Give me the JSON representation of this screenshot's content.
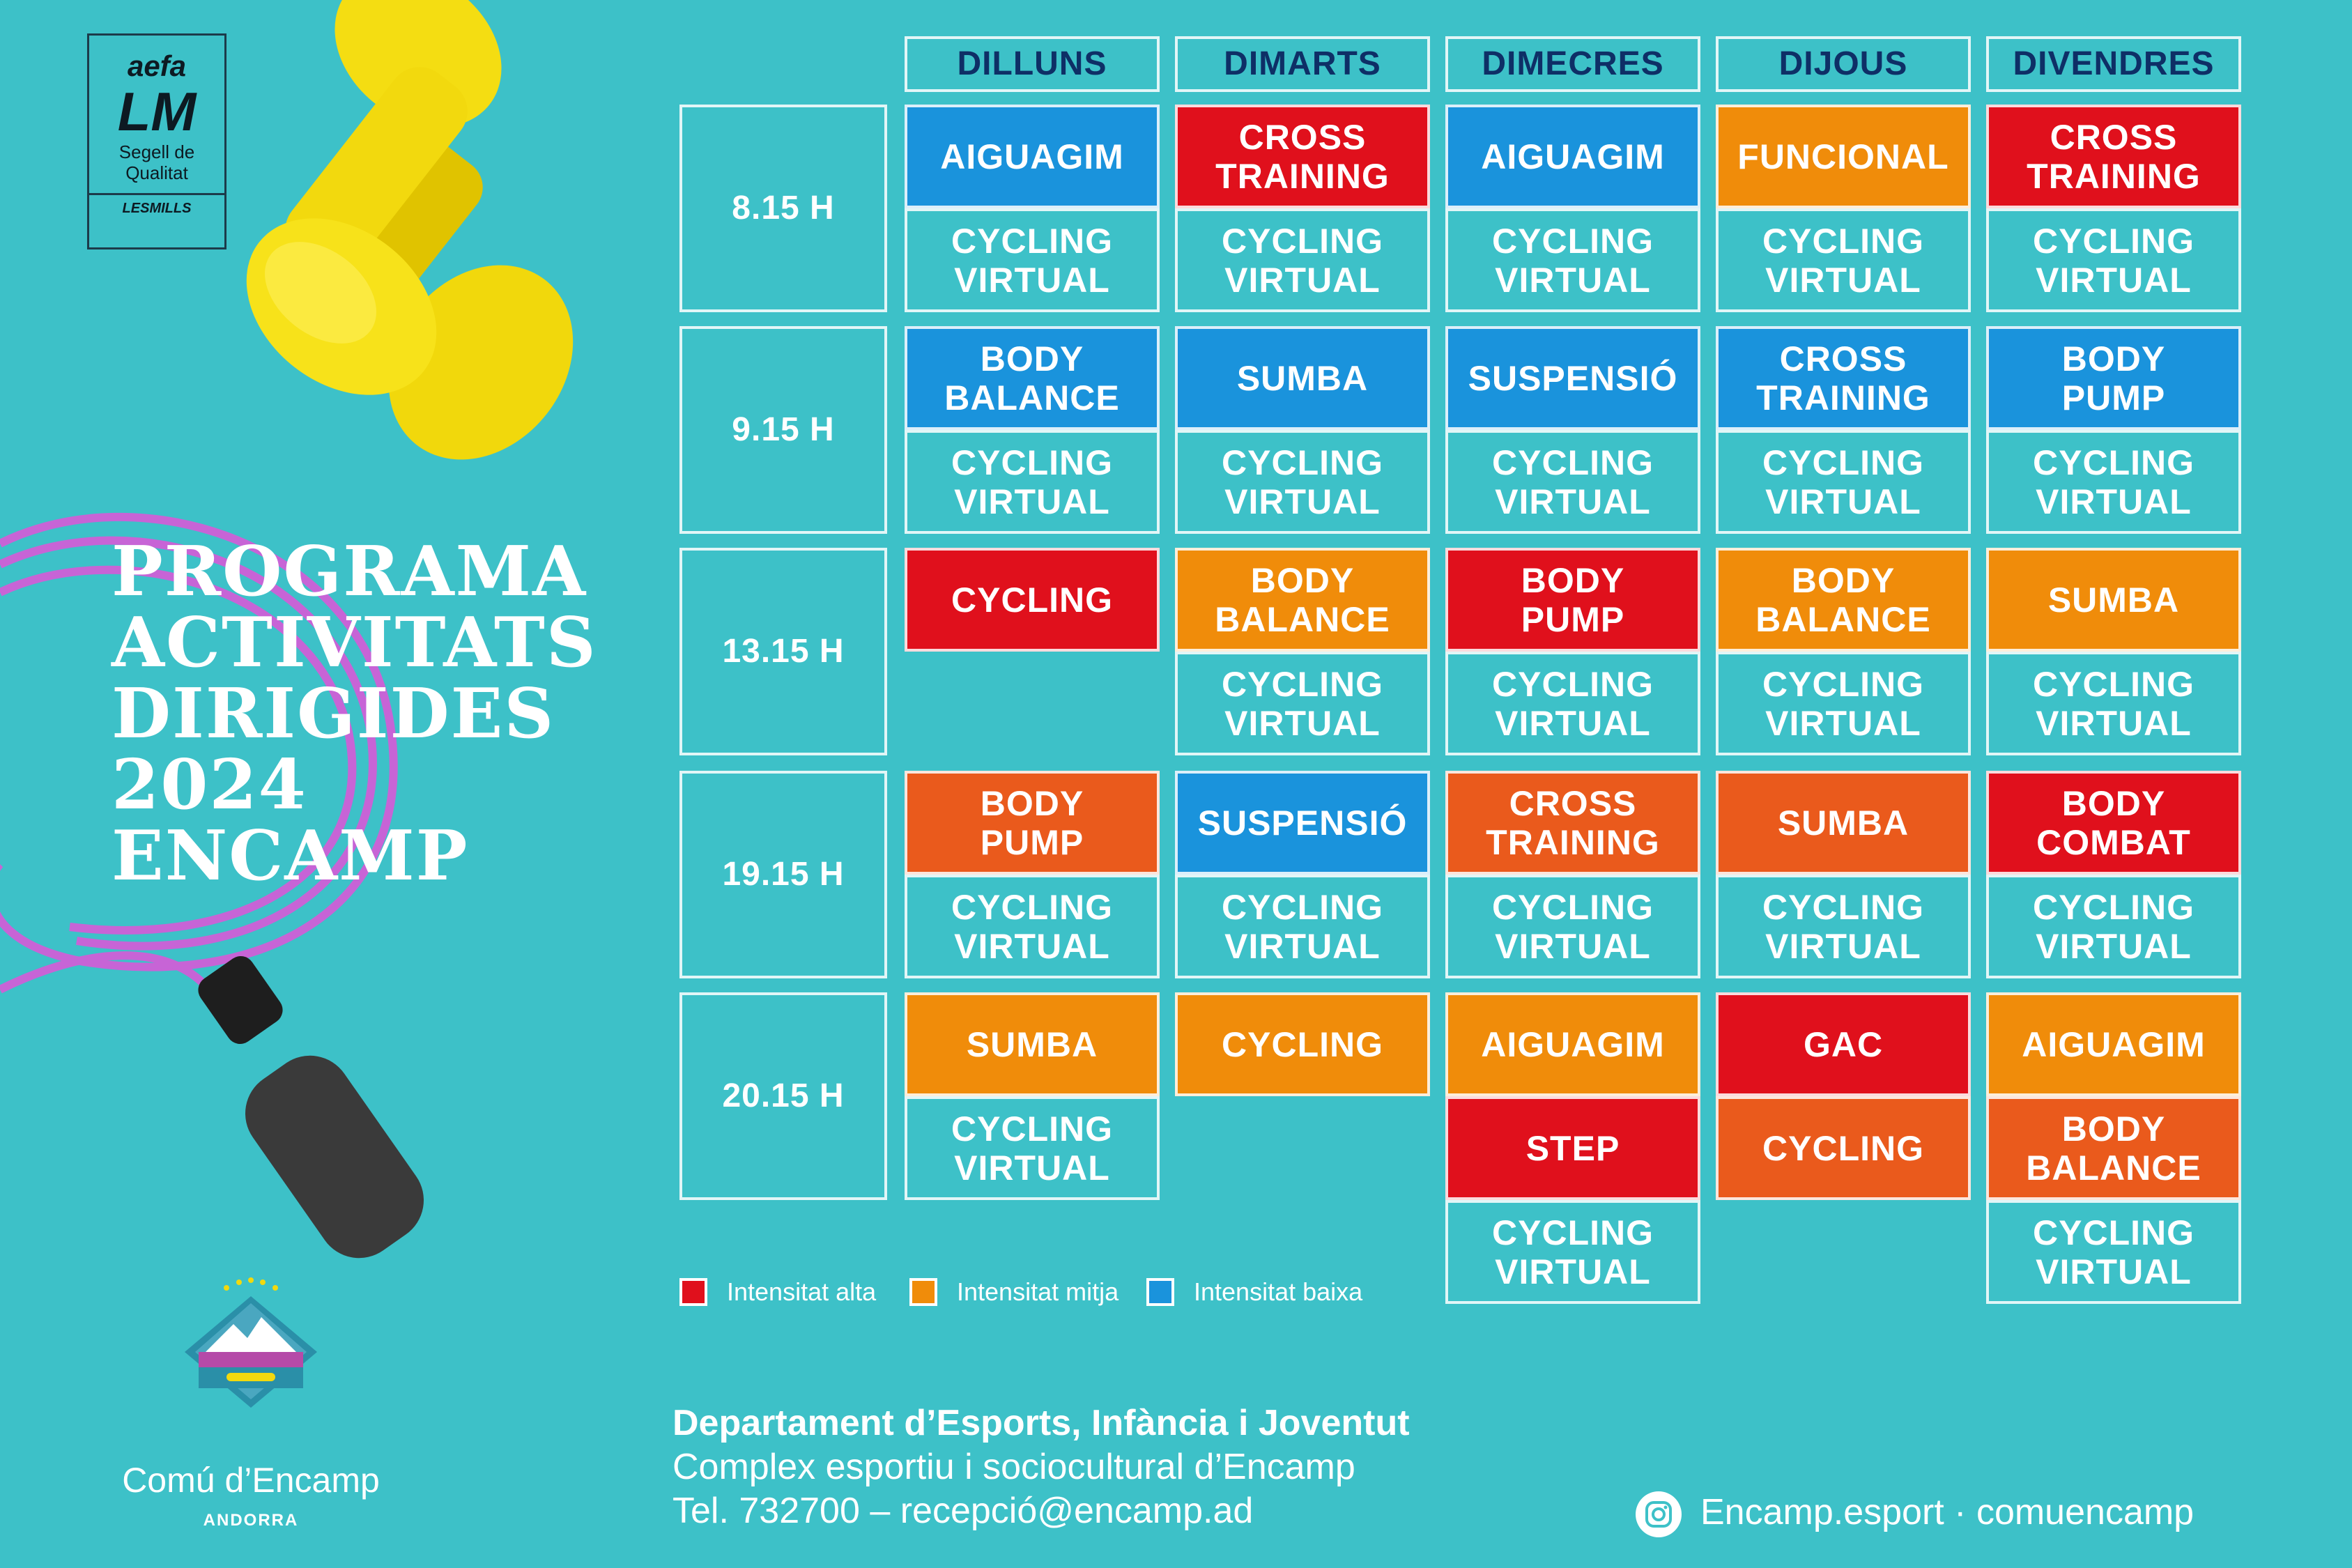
{
  "colors": {
    "background": "#3dc1c8",
    "alta": "#e0101c",
    "mitja": "#f08c0a",
    "baixa": "#1a93dc",
    "orange_red": "#ea5a1c",
    "day_text": "#0e2f66"
  },
  "badge": {
    "brand": "aefa",
    "mark": "LM",
    "line1": "Segell de",
    "line2": "Qualitat",
    "partner": "LESMILLS"
  },
  "title": [
    "PROGRAMA",
    "ACTIVITATS",
    "DIRIGIDES",
    "2024",
    "ENCAMP"
  ],
  "days": [
    "DILLUNS",
    "DIMARTS",
    "DIMECRES",
    "DIJOUS",
    "DIVENDRES"
  ],
  "times": [
    "8.15 H",
    "9.15 H",
    "13.15 H",
    "19.15 H",
    "20.15 H"
  ],
  "schedule": [
    [
      [
        {
          "label": "AIGUAGIM",
          "color": "baixa"
        },
        {
          "label": "CYCLING\nVIRTUAL",
          "color": "none"
        }
      ],
      [
        {
          "label": "CROSS\nTRAINING",
          "color": "alta"
        },
        {
          "label": "CYCLING\nVIRTUAL",
          "color": "none"
        }
      ],
      [
        {
          "label": "AIGUAGIM",
          "color": "baixa"
        },
        {
          "label": "CYCLING\nVIRTUAL",
          "color": "none"
        }
      ],
      [
        {
          "label": "FUNCIONAL",
          "color": "mitja"
        },
        {
          "label": "CYCLING\nVIRTUAL",
          "color": "none"
        }
      ],
      [
        {
          "label": "CROSS\nTRAINING",
          "color": "alta"
        },
        {
          "label": "CYCLING\nVIRTUAL",
          "color": "none"
        }
      ]
    ],
    [
      [
        {
          "label": "BODY\nBALANCE",
          "color": "baixa"
        },
        {
          "label": "CYCLING\nVIRTUAL",
          "color": "none"
        }
      ],
      [
        {
          "label": "SUMBA",
          "color": "baixa"
        },
        {
          "label": "CYCLING\nVIRTUAL",
          "color": "none"
        }
      ],
      [
        {
          "label": "SUSPENSIÓ",
          "color": "baixa"
        },
        {
          "label": "CYCLING\nVIRTUAL",
          "color": "none"
        }
      ],
      [
        {
          "label": "CROSS\nTRAINING",
          "color": "baixa"
        },
        {
          "label": "CYCLING\nVIRTUAL",
          "color": "none"
        }
      ],
      [
        {
          "label": "BODY\nPUMP",
          "color": "baixa"
        },
        {
          "label": "CYCLING\nVIRTUAL",
          "color": "none"
        }
      ]
    ],
    [
      [
        {
          "label": "CYCLING",
          "color": "alta"
        }
      ],
      [
        {
          "label": "BODY\nBALANCE",
          "color": "mitja"
        },
        {
          "label": "CYCLING\nVIRTUAL",
          "color": "none"
        }
      ],
      [
        {
          "label": "BODY\nPUMP",
          "color": "alta"
        },
        {
          "label": "CYCLING\nVIRTUAL",
          "color": "none"
        }
      ],
      [
        {
          "label": "BODY\nBALANCE",
          "color": "mitja"
        },
        {
          "label": "CYCLING\nVIRTUAL",
          "color": "none"
        }
      ],
      [
        {
          "label": "SUMBA",
          "color": "mitja"
        },
        {
          "label": "CYCLING\nVIRTUAL",
          "color": "none"
        }
      ]
    ],
    [
      [
        {
          "label": "BODY\nPUMP",
          "color": "orange_red"
        },
        {
          "label": "CYCLING\nVIRTUAL",
          "color": "none"
        }
      ],
      [
        {
          "label": "SUSPENSIÓ",
          "color": "baixa"
        },
        {
          "label": "CYCLING\nVIRTUAL",
          "color": "none"
        }
      ],
      [
        {
          "label": "CROSS\nTRAINING",
          "color": "orange_red"
        },
        {
          "label": "CYCLING\nVIRTUAL",
          "color": "none"
        }
      ],
      [
        {
          "label": "SUMBA",
          "color": "orange_red"
        },
        {
          "label": "CYCLING\nVIRTUAL",
          "color": "none"
        }
      ],
      [
        {
          "label": "BODY\nCOMBAT",
          "color": "alta"
        },
        {
          "label": "CYCLING\nVIRTUAL",
          "color": "none"
        }
      ]
    ],
    [
      [
        {
          "label": "SUMBA",
          "color": "mitja"
        },
        {
          "label": "CYCLING\nVIRTUAL",
          "color": "none"
        }
      ],
      [
        {
          "label": "CYCLING",
          "color": "mitja"
        }
      ],
      [
        {
          "label": "AIGUAGIM",
          "color": "mitja"
        },
        {
          "label": "STEP",
          "color": "alta"
        },
        {
          "label": "CYCLING\nVIRTUAL",
          "color": "none"
        }
      ],
      [
        {
          "label": "GAC",
          "color": "alta"
        },
        {
          "label": "CYCLING",
          "color": "orange_red"
        }
      ],
      [
        {
          "label": "AIGUAGIM",
          "color": "mitja"
        },
        {
          "label": "BODY\nBALANCE",
          "color": "orange_red"
        },
        {
          "label": "CYCLING\nVIRTUAL",
          "color": "none"
        }
      ]
    ]
  ],
  "legend": [
    {
      "label": "Intensitat alta",
      "color": "alta"
    },
    {
      "label": "Intensitat mitja",
      "color": "mitja"
    },
    {
      "label": "Intensitat baixa",
      "color": "baixa"
    }
  ],
  "footer": {
    "dept": "Departament d’Esports, Infància i Joventut",
    "complex": "Complex esportiu i sociocultural d’Encamp",
    "contact": "Tel. 732700 – recepció@encamp.ad",
    "social": "Encamp.esport · comuencamp"
  },
  "logo": {
    "name": "Comú d’Encamp",
    "country": "ANDORRA"
  }
}
